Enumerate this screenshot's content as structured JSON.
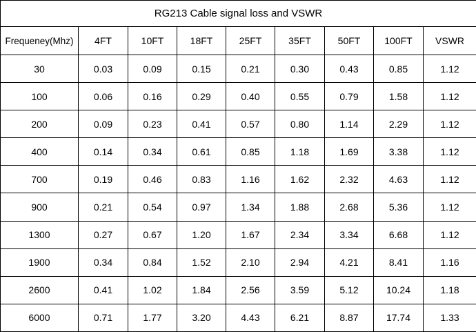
{
  "table": {
    "title": "RG213 Cable signal loss and VSWR",
    "columns": [
      "Frequeney(Mhz)",
      "4FT",
      "10FT",
      "18FT",
      "25FT",
      "35FT",
      "50FT",
      "100FT",
      "VSWR"
    ],
    "rows": [
      [
        "30",
        "0.03",
        "0.09",
        "0.15",
        "0.21",
        "0.30",
        "0.43",
        "0.85",
        "1.12"
      ],
      [
        "100",
        "0.06",
        "0.16",
        "0.29",
        "0.40",
        "0.55",
        "0.79",
        "1.58",
        "1.12"
      ],
      [
        "200",
        "0.09",
        "0.23",
        "0.41",
        "0.57",
        "0.80",
        "1.14",
        "2.29",
        "1.12"
      ],
      [
        "400",
        "0.14",
        "0.34",
        "0.61",
        "0.85",
        "1.18",
        "1.69",
        "3.38",
        "1.12"
      ],
      [
        "700",
        "0.19",
        "0.46",
        "0.83",
        "1.16",
        "1.62",
        "2.32",
        "4.63",
        "1.12"
      ],
      [
        "900",
        "0.21",
        "0.54",
        "0.97",
        "1.34",
        "1.88",
        "2.68",
        "5.36",
        "1.12"
      ],
      [
        "1300",
        "0.27",
        "0.67",
        "1.20",
        "1.67",
        "2.34",
        "3.34",
        "6.68",
        "1.12"
      ],
      [
        "1900",
        "0.34",
        "0.84",
        "1.52",
        "2.10",
        "2.94",
        "4.21",
        "8.41",
        "1.16"
      ],
      [
        "2600",
        "0.41",
        "1.02",
        "1.84",
        "2.56",
        "3.59",
        "5.12",
        "10.24",
        "1.18"
      ],
      [
        "6000",
        "0.71",
        "1.77",
        "3.20",
        "4.43",
        "6.21",
        "8.87",
        "17.74",
        "1.33"
      ]
    ]
  }
}
